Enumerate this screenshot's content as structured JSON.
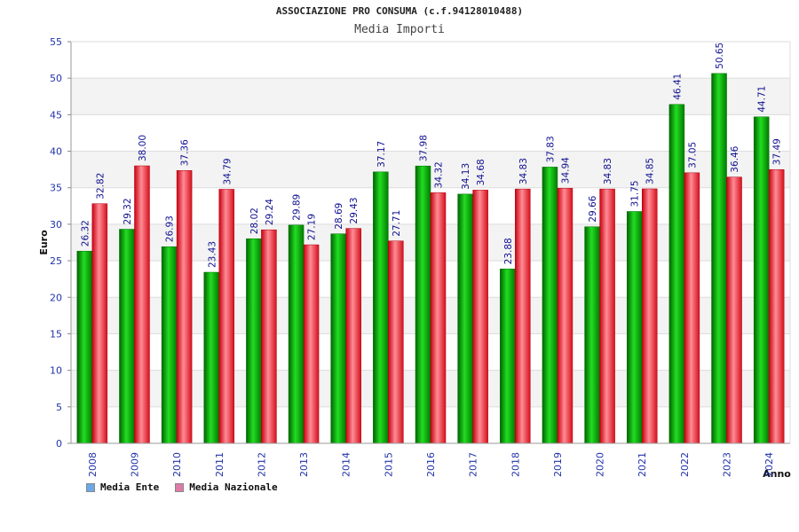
{
  "chart_data": {
    "type": "bar",
    "title": "ASSOCIAZIONE PRO CONSUMA (c.f.94128010488)",
    "subtitle": "Media Importi",
    "ylabel": "Euro",
    "xlabel": "Anno",
    "ylim": [
      0,
      55
    ],
    "yticks": [
      0,
      5,
      10,
      15,
      20,
      25,
      30,
      35,
      40,
      45,
      50,
      55
    ],
    "grid": true,
    "legend_position": "bottom-left",
    "categories": [
      "2008",
      "2009",
      "2010",
      "2011",
      "2012",
      "2013",
      "2014",
      "2015",
      "2016",
      "2017",
      "2018",
      "2019",
      "2020",
      "2021",
      "2022",
      "2023",
      "2024"
    ],
    "series": [
      {
        "name": "Media Ente",
        "color": "#00b000",
        "legend_color": "#6aa9e8",
        "values": [
          26.32,
          29.32,
          26.93,
          23.43,
          28.02,
          29.89,
          28.69,
          37.17,
          37.98,
          34.13,
          23.88,
          37.83,
          29.66,
          31.75,
          46.41,
          50.65,
          44.71
        ],
        "labels": [
          "26.32",
          "29.32",
          "26.93",
          "23.43",
          "28.02",
          "29.89",
          "28.69",
          "37.17",
          "37.98",
          "34.13",
          "23.88",
          "37.83",
          "29.66",
          "31.75",
          "46.41",
          "50.65",
          "44.71"
        ]
      },
      {
        "name": "Media Nazionale",
        "color": "#e8303c",
        "legend_color": "#e07aa8",
        "values": [
          32.82,
          38.0,
          37.36,
          34.79,
          29.24,
          27.19,
          29.43,
          27.71,
          34.32,
          34.68,
          34.83,
          34.94,
          34.83,
          34.85,
          37.05,
          36.46,
          37.49
        ],
        "labels": [
          "32.82",
          "38.00",
          "37.36",
          "34.79",
          "29.24",
          "27.19",
          "29.43",
          "27.71",
          "34.32",
          "34.68",
          "34.83",
          "34.94",
          "34.83",
          "34.85",
          "37.05",
          "36.46",
          "37.49"
        ]
      }
    ]
  }
}
